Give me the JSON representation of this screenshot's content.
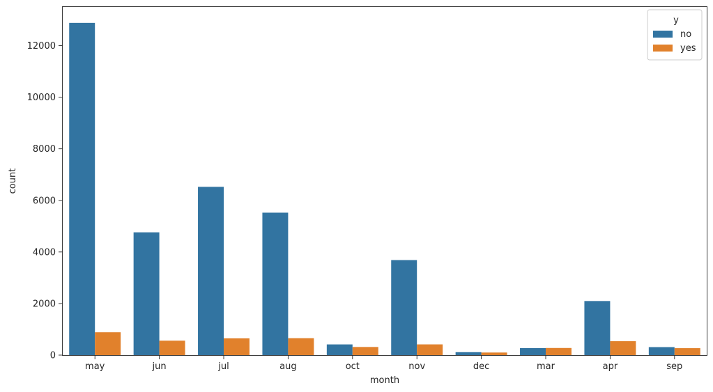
{
  "chart_data": {
    "type": "bar",
    "categories": [
      "may",
      "jun",
      "jul",
      "aug",
      "oct",
      "nov",
      "dec",
      "mar",
      "apr",
      "sep"
    ],
    "series": [
      {
        "name": "no",
        "color": "#3274a1",
        "values": [
          12883,
          4761,
          6525,
          5523,
          415,
          3685,
          114,
          271,
          2097,
          310
        ]
      },
      {
        "name": "yes",
        "color": "#e1812c",
        "values": [
          886,
          559,
          649,
          655,
          315,
          416,
          100,
          276,
          539,
          269
        ]
      }
    ],
    "xlabel": "month",
    "ylabel": "count",
    "ylim": [
      0,
      13500
    ],
    "yticks": [
      0,
      2000,
      4000,
      6000,
      8000,
      10000,
      12000
    ],
    "legend": {
      "title": "y",
      "placement": "top-right"
    },
    "grid": false
  }
}
